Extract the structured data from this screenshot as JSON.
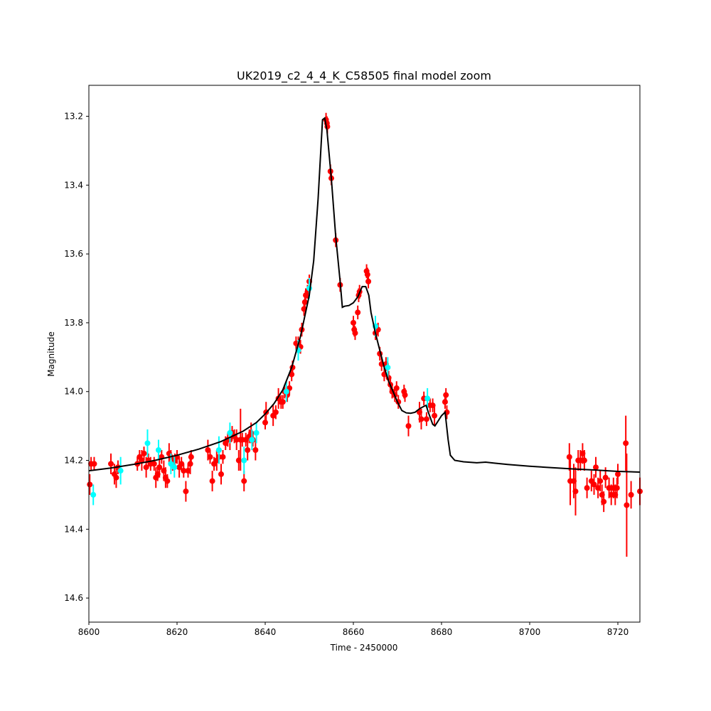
{
  "chart_data": {
    "type": "scatter",
    "title": "UK2019_c2_4_4_K_C58505 final model zoom",
    "xlabel": "Time - 2450000",
    "ylabel": "Magnitude",
    "xlim": [
      8600,
      8725
    ],
    "ylim": [
      14.67,
      13.11
    ],
    "y_inverted": true,
    "grid": false,
    "x_ticks": [
      8600,
      8620,
      8640,
      8660,
      8680,
      8700,
      8720
    ],
    "y_ticks": [
      13.2,
      13.4,
      13.6,
      13.8,
      14.0,
      14.2,
      14.4,
      14.6
    ],
    "colors": {
      "series_red": "#ff0000",
      "series_cyan": "#00ffff",
      "model": "#000000"
    },
    "series": [
      {
        "color": "#ff0000",
        "points": [
          [
            8600.2,
            14.27,
            0.03
          ],
          [
            8600.5,
            14.21,
            0.02
          ],
          [
            8601.2,
            14.21,
            0.02
          ],
          [
            8605.0,
            14.21,
            0.03
          ],
          [
            8605.8,
            14.24,
            0.03
          ],
          [
            8606.2,
            14.25,
            0.03
          ],
          [
            8606.6,
            14.22,
            0.02
          ],
          [
            8611.0,
            14.21,
            0.02
          ],
          [
            8611.5,
            14.19,
            0.02
          ],
          [
            8612.0,
            14.2,
            0.03
          ],
          [
            8612.5,
            14.18,
            0.02
          ],
          [
            8613.0,
            14.22,
            0.03
          ],
          [
            8613.5,
            14.2,
            0.02
          ],
          [
            8614.0,
            14.21,
            0.02
          ],
          [
            8614.8,
            14.21,
            0.02
          ],
          [
            8615.2,
            14.25,
            0.03
          ],
          [
            8615.6,
            14.24,
            0.02
          ],
          [
            8616.0,
            14.22,
            0.03
          ],
          [
            8616.5,
            14.19,
            0.02
          ],
          [
            8617.0,
            14.23,
            0.03
          ],
          [
            8617.4,
            14.25,
            0.03
          ],
          [
            8617.8,
            14.26,
            0.02
          ],
          [
            8618.2,
            14.18,
            0.03
          ],
          [
            8618.6,
            14.19,
            0.02
          ],
          [
            8619.0,
            14.21,
            0.02
          ],
          [
            8619.5,
            14.2,
            0.02
          ],
          [
            8620.0,
            14.19,
            0.02
          ],
          [
            8620.5,
            14.22,
            0.03
          ],
          [
            8621.0,
            14.21,
            0.02
          ],
          [
            8621.5,
            14.23,
            0.02
          ],
          [
            8622.0,
            14.29,
            0.03
          ],
          [
            8622.5,
            14.23,
            0.02
          ],
          [
            8623.0,
            14.21,
            0.03
          ],
          [
            8623.2,
            14.19,
            0.02
          ],
          [
            8627.0,
            14.17,
            0.03
          ],
          [
            8627.5,
            14.19,
            0.02
          ],
          [
            8628.0,
            14.26,
            0.03
          ],
          [
            8628.4,
            14.21,
            0.02
          ],
          [
            8629.0,
            14.2,
            0.03
          ],
          [
            8629.5,
            14.19,
            0.02
          ],
          [
            8630.0,
            14.24,
            0.03
          ],
          [
            8630.4,
            14.19,
            0.02
          ],
          [
            8631.0,
            14.15,
            0.02
          ],
          [
            8631.5,
            14.14,
            0.02
          ],
          [
            8632.0,
            14.14,
            0.03
          ],
          [
            8632.5,
            14.12,
            0.02
          ],
          [
            8633.0,
            14.13,
            0.02
          ],
          [
            8633.5,
            14.14,
            0.03
          ],
          [
            8634.0,
            14.2,
            0.03
          ],
          [
            8634.4,
            14.14,
            0.09
          ],
          [
            8634.8,
            14.14,
            0.02
          ],
          [
            8635.2,
            14.26,
            0.03
          ],
          [
            8635.6,
            14.14,
            0.02
          ],
          [
            8636.0,
            14.17,
            0.03
          ],
          [
            8636.4,
            14.13,
            0.02
          ],
          [
            8636.8,
            14.12,
            0.03
          ],
          [
            8637.2,
            14.14,
            0.02
          ],
          [
            8637.8,
            14.17,
            0.03
          ],
          [
            8640.0,
            14.09,
            0.02
          ],
          [
            8640.2,
            14.06,
            0.03
          ],
          [
            8641.8,
            14.07,
            0.03
          ],
          [
            8642.4,
            14.06,
            0.02
          ],
          [
            8643.0,
            14.02,
            0.03
          ],
          [
            8643.6,
            14.03,
            0.02
          ],
          [
            8644.0,
            14.03,
            0.02
          ],
          [
            8644.4,
            14.0,
            0.02
          ],
          [
            8645.0,
            14.01,
            0.02
          ],
          [
            8645.5,
            13.99,
            0.02
          ],
          [
            8646.0,
            13.95,
            0.02
          ],
          [
            8646.2,
            13.93,
            0.02
          ],
          [
            8647.0,
            13.86,
            0.02
          ],
          [
            8647.5,
            13.86,
            0.02
          ],
          [
            8648.0,
            13.87,
            0.02
          ],
          [
            8648.3,
            13.82,
            0.02
          ],
          [
            8648.8,
            13.76,
            0.02
          ],
          [
            8649.0,
            13.74,
            0.02
          ],
          [
            8649.2,
            13.72,
            0.02
          ],
          [
            8649.6,
            13.71,
            0.02
          ],
          [
            8650.0,
            13.68,
            0.02
          ],
          [
            8653.8,
            13.21,
            0.02
          ],
          [
            8654.0,
            13.22,
            0.02
          ],
          [
            8654.1,
            13.23,
            0.02
          ],
          [
            8654.8,
            13.36,
            0.02
          ],
          [
            8655.0,
            13.38,
            0.02
          ],
          [
            8656.0,
            13.56,
            0.02
          ],
          [
            8657.0,
            13.69,
            0.02
          ],
          [
            8660.0,
            13.8,
            0.02
          ],
          [
            8660.2,
            13.82,
            0.02
          ],
          [
            8660.4,
            13.83,
            0.02
          ],
          [
            8661.0,
            13.77,
            0.02
          ],
          [
            8661.2,
            13.72,
            0.02
          ],
          [
            8661.4,
            13.71,
            0.02
          ],
          [
            8663.0,
            13.65,
            0.02
          ],
          [
            8663.2,
            13.66,
            0.02
          ],
          [
            8663.4,
            13.68,
            0.02
          ],
          [
            8665.0,
            13.83,
            0.02
          ],
          [
            8665.6,
            13.82,
            0.02
          ],
          [
            8666.0,
            13.89,
            0.02
          ],
          [
            8666.4,
            13.92,
            0.02
          ],
          [
            8667.0,
            13.95,
            0.02
          ],
          [
            8667.4,
            13.92,
            0.02
          ],
          [
            8668.0,
            13.96,
            0.02
          ],
          [
            8668.4,
            13.98,
            0.02
          ],
          [
            8668.8,
            14.0,
            0.02
          ],
          [
            8669.4,
            14.01,
            0.02
          ],
          [
            8669.8,
            13.99,
            0.02
          ],
          [
            8670.2,
            14.03,
            0.02
          ],
          [
            8671.5,
            14.0,
            0.02
          ],
          [
            8671.7,
            14.01,
            0.02
          ],
          [
            8672.5,
            14.1,
            0.03
          ],
          [
            8675.0,
            14.06,
            0.03
          ],
          [
            8675.4,
            14.08,
            0.03
          ],
          [
            8676.0,
            14.02,
            0.02
          ],
          [
            8676.6,
            14.08,
            0.02
          ],
          [
            8677.4,
            14.04,
            0.02
          ],
          [
            8678.0,
            14.04,
            0.02
          ],
          [
            8678.4,
            14.07,
            0.03
          ],
          [
            8680.8,
            14.03,
            0.02
          ],
          [
            8681.0,
            14.01,
            0.02
          ],
          [
            8681.2,
            14.06,
            0.02
          ],
          [
            8709.0,
            14.19,
            0.04
          ],
          [
            8709.2,
            14.26,
            0.07
          ],
          [
            8710.0,
            14.26,
            0.05
          ],
          [
            8710.4,
            14.29,
            0.07
          ],
          [
            8711.0,
            14.2,
            0.03
          ],
          [
            8711.5,
            14.2,
            0.03
          ],
          [
            8712.0,
            14.18,
            0.03
          ],
          [
            8712.4,
            14.2,
            0.03
          ],
          [
            8713.0,
            14.28,
            0.03
          ],
          [
            8714.0,
            14.26,
            0.03
          ],
          [
            8714.6,
            14.27,
            0.03
          ],
          [
            8715.0,
            14.22,
            0.03
          ],
          [
            8715.5,
            14.28,
            0.03
          ],
          [
            8716.0,
            14.26,
            0.03
          ],
          [
            8716.4,
            14.3,
            0.03
          ],
          [
            8716.8,
            14.32,
            0.03
          ],
          [
            8717.2,
            14.25,
            0.03
          ],
          [
            8718.0,
            14.28,
            0.03
          ],
          [
            8718.5,
            14.3,
            0.03
          ],
          [
            8719.0,
            14.28,
            0.03
          ],
          [
            8719.4,
            14.3,
            0.03
          ],
          [
            8719.8,
            14.28,
            0.03
          ],
          [
            8720.0,
            14.24,
            0.03
          ],
          [
            8721.8,
            14.15,
            0.08
          ],
          [
            8722.0,
            14.33,
            0.15
          ],
          [
            8723.0,
            14.3,
            0.04
          ],
          [
            8725.0,
            14.29,
            0.04
          ],
          [
            8725.2,
            14.3,
            0.04
          ]
        ]
      },
      {
        "color": "#00ffff",
        "points": [
          [
            8601.0,
            14.3,
            0.03
          ],
          [
            8607.2,
            14.23,
            0.04
          ],
          [
            8613.3,
            14.15,
            0.04
          ],
          [
            8615.8,
            14.17,
            0.03
          ],
          [
            8618.6,
            14.21,
            0.03
          ],
          [
            8619.4,
            14.22,
            0.03
          ],
          [
            8629.5,
            14.17,
            0.04
          ],
          [
            8632.0,
            14.12,
            0.03
          ],
          [
            8635.2,
            14.2,
            0.04
          ],
          [
            8637.0,
            14.14,
            0.03
          ],
          [
            8638.0,
            14.12,
            0.03
          ],
          [
            8644.8,
            14.0,
            0.03
          ],
          [
            8647.5,
            13.88,
            0.03
          ],
          [
            8650.0,
            13.7,
            0.03
          ],
          [
            8665.0,
            13.81,
            0.03
          ],
          [
            8667.8,
            13.93,
            0.03
          ],
          [
            8676.8,
            14.02,
            0.03
          ]
        ]
      }
    ],
    "model": {
      "color": "#000000",
      "points": [
        [
          8600,
          14.23
        ],
        [
          8605,
          14.222
        ],
        [
          8610,
          14.212
        ],
        [
          8615,
          14.2
        ],
        [
          8620,
          14.185
        ],
        [
          8625,
          14.167
        ],
        [
          8630,
          14.145
        ],
        [
          8635,
          14.115
        ],
        [
          8638,
          14.09
        ],
        [
          8640,
          14.065
        ],
        [
          8642,
          14.035
        ],
        [
          8644,
          13.995
        ],
        [
          8646,
          13.93
        ],
        [
          8648,
          13.84
        ],
        [
          8650,
          13.72
        ],
        [
          8651,
          13.62
        ],
        [
          8652,
          13.44
        ],
        [
          8653,
          13.21
        ],
        [
          8653.5,
          13.205
        ],
        [
          8654,
          13.24
        ],
        [
          8655,
          13.38
        ],
        [
          8656,
          13.55
        ],
        [
          8657,
          13.68
        ],
        [
          8657.5,
          13.755
        ],
        [
          8658,
          13.752
        ],
        [
          8659,
          13.75
        ],
        [
          8660,
          13.742
        ],
        [
          8661,
          13.725
        ],
        [
          8662,
          13.695
        ],
        [
          8662.8,
          13.695
        ],
        [
          8663.5,
          13.72
        ],
        [
          8664,
          13.77
        ],
        [
          8665,
          13.83
        ],
        [
          8666,
          13.88
        ],
        [
          8667,
          13.93
        ],
        [
          8668,
          13.97
        ],
        [
          8669,
          14.0
        ],
        [
          8670,
          14.03
        ],
        [
          8671,
          14.055
        ],
        [
          8672,
          14.062
        ],
        [
          8673,
          14.063
        ],
        [
          8674,
          14.06
        ],
        [
          8675,
          14.05
        ],
        [
          8676,
          14.043
        ],
        [
          8676.5,
          14.04
        ],
        [
          8677,
          14.06
        ],
        [
          8678,
          14.095
        ],
        [
          8678.5,
          14.1
        ],
        [
          8679,
          14.09
        ],
        [
          8680,
          14.07
        ],
        [
          8680.8,
          14.06
        ],
        [
          8681.5,
          14.14
        ],
        [
          8682,
          14.185
        ],
        [
          8683,
          14.2
        ],
        [
          8685,
          14.204
        ],
        [
          8688,
          14.207
        ],
        [
          8690,
          14.205
        ],
        [
          8692,
          14.208
        ],
        [
          8695,
          14.212
        ],
        [
          8700,
          14.217
        ],
        [
          8705,
          14.221
        ],
        [
          8710,
          14.225
        ],
        [
          8715,
          14.228
        ],
        [
          8720,
          14.232
        ],
        [
          8725,
          14.234
        ]
      ]
    }
  }
}
